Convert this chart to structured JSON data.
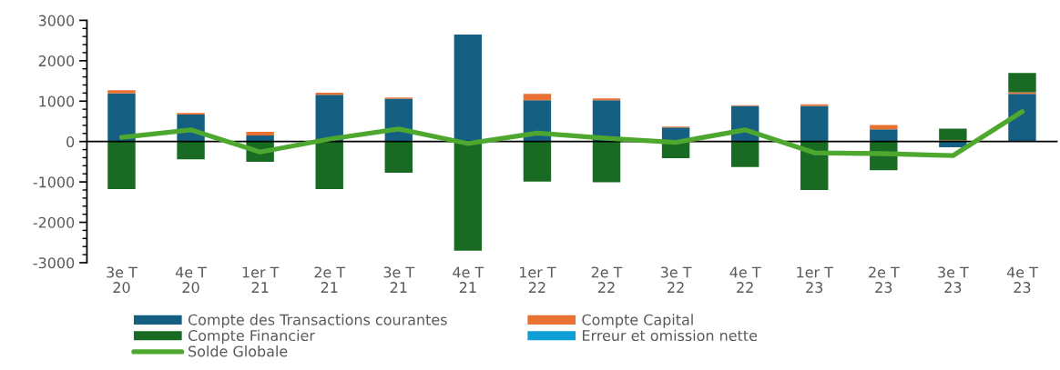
{
  "chart_data": {
    "type": "bar",
    "stacked": true,
    "categories": [
      "3e T 20",
      "4e T 20",
      "1er T 21",
      "2e T 21",
      "3e T 21",
      "4e T 21",
      "1er T 22",
      "2e T 22",
      "3e T 22",
      "4e T 22",
      "1er T 23",
      "2e T 23",
      "3e T 23",
      "4e T 23"
    ],
    "series": [
      {
        "name": "Compte des Transactions courantes",
        "color": "#156082",
        "values": [
          1190,
          670,
          150,
          1160,
          1060,
          2650,
          1020,
          1020,
          350,
          880,
          880,
          300,
          -140,
          1180
        ]
      },
      {
        "name": "Compte Capital",
        "color": "#e97132",
        "values": [
          80,
          40,
          90,
          50,
          30,
          null,
          160,
          50,
          20,
          20,
          40,
          110,
          30,
          40
        ]
      },
      {
        "name": "Compte Financier",
        "color": "#196b24",
        "values": [
          -1180,
          -440,
          -500,
          -1180,
          -770,
          -2700,
          -990,
          -1010,
          -410,
          -630,
          -1200,
          -710,
          290,
          480
        ]
      },
      {
        "name": "Erreur et omission nette",
        "color": "#0f9ed5",
        "values": [
          null,
          null,
          null,
          null,
          null,
          null,
          null,
          null,
          null,
          null,
          null,
          null,
          null,
          null
        ]
      },
      {
        "name": "Solde Globale",
        "type": "line",
        "color": "#4ea72e",
        "values": [
          100,
          290,
          -260,
          60,
          310,
          -50,
          210,
          80,
          -20,
          290,
          -280,
          -300,
          -350,
          740
        ]
      }
    ],
    "ylim": [
      -3000,
      3000
    ],
    "yticks": [
      -3000,
      -2000,
      -1000,
      0,
      1000,
      2000,
      3000
    ],
    "legend": "bottom"
  }
}
